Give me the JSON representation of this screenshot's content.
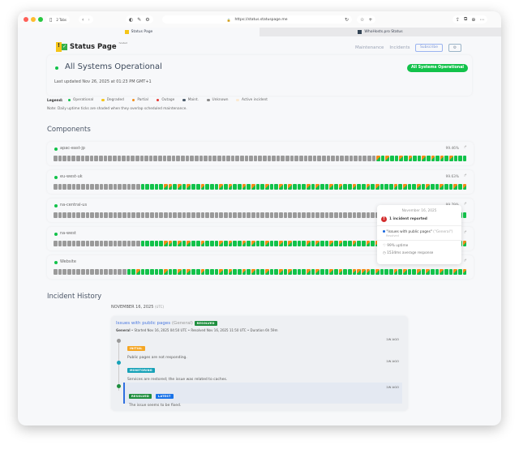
{
  "browser": {
    "tabs_count": "2 Tabs",
    "url": "https://status.statuspage.me",
    "tab1": "Status Page",
    "tab2": "WhoHosts.pro Status"
  },
  "header": {
    "logo_text": "Status Page",
    "logo_sup": "hosted",
    "nav": [
      "Maintenance",
      "Incidents"
    ],
    "subscribe": "Subscribe",
    "settings_icon": "gear-icon"
  },
  "status": {
    "title": "All Systems Operational",
    "updated": "Last updated Nov 26, 2025 at 01:23 PM GMT+1",
    "badge": "All Systems Operational"
  },
  "legend": {
    "label": "Legend:",
    "items": [
      {
        "label": "Operational",
        "color": "#12c24a"
      },
      {
        "label": "Degraded",
        "color": "#f5c518"
      },
      {
        "label": "Partial",
        "color": "#f28c18"
      },
      {
        "label": "Outage",
        "color": "#e53935"
      },
      {
        "label": "Maint.",
        "color": "#4a5a6a"
      },
      {
        "label": "Unknown",
        "color": "#8a8a8a"
      },
      {
        "label": "Active incident",
        "color": "#fbe9d2"
      }
    ],
    "note": "Note: Daily uptime ticks are shaded when they overlap scheduled maintenance."
  },
  "colors": {
    "U": "#9a9a9a",
    "O": "#12c24a",
    "P": "#f28c18"
  },
  "components": {
    "title": "Components",
    "items": [
      {
        "name": "apac-east-jp",
        "uptime": "99.46%",
        "ticks": "UUUUUUUUUUUUUUUUUUUUUUUUUUUUUUUUUUUUUUUUUUUUUUUUUUUUUUUUUUUUUUUUUUUUUUUPOPOOPOPOOPOPOPOPOOO"
      },
      {
        "name": "eu-west-uk",
        "uptime": "99.63%",
        "ticks": "UUUUUUUUUUUUUUUUUUUOOOOOPPOPOPOOPOOOPOPOOPOPOOPOOPOPOOOPOPOOPOPOOPOOPOPOOOPOPOOPOPOOPOOPOP"
      },
      {
        "name": "na-central-us",
        "uptime": "99.79%",
        "ticks": "UUUUUUUUUUUUUUUUUUUUUUUUUUUUUUUUUUUUUUUUUUUUUUUUUUUUUUUUUUUUUUUUUUUUUUUUUUUUUUUUUUUUUUUUOO"
      },
      {
        "name": "na-west",
        "uptime": "",
        "ticks": "UUUUUUUUUUUUUUUUUUUOOOOOPPOPOPOOPOOOPOPOOPOPOOPOOPOPOOOPOPOOPOPOOPOOPOPOOOPOPOOPOPOOPOOPOP"
      },
      {
        "name": "Website",
        "uptime": "",
        "ticks": "UUUUUUUUUUUUUUUUOOPOOOOOPOOPOPOOPOOOPOPOOPOPOOPOOPOPOOOPOPOOPOPOOPPPPOPOOOPOPOOPOPOOPOOPOP"
      }
    ]
  },
  "tooltip": {
    "date": "November 16, 2025",
    "count": "1 incident reported",
    "incident": "\"Issues with public pages\"",
    "category": "(\"General\")",
    "state": "Resolved",
    "uptime": "99% uptime",
    "response": "1534ms average response"
  },
  "history": {
    "title": "Incident History",
    "date": "NOVEMBER 16, 2025",
    "tz": "(UTC)",
    "incident": {
      "title": "Issues with public pages",
      "category": "(General)",
      "badge": "RESOLVED",
      "meta_group": "General",
      "meta": " • Started Nov 16, 2025 04:50 UTC • Resolved Nov 16, 2025 11:50 UTC • Duration 6h 59m",
      "updates": [
        {
          "badge": "INITIAL",
          "color": "#f5a623",
          "dot": "#999",
          "text": "Public pages are not responding.",
          "ago": "1W AGO"
        },
        {
          "badge": "MONITORING",
          "color": "#17a2b8",
          "dot": "#17a2b8",
          "text": "Services are restored; the issue was related to caches.",
          "ago": "1W AGO"
        },
        {
          "badge": "RESOLVED",
          "badge2": "LATEST",
          "color": "#1e8e3e",
          "dot": "#1e8e3e",
          "text": "The issue seems to be fixed.",
          "ago": "1W AGO"
        }
      ]
    }
  }
}
